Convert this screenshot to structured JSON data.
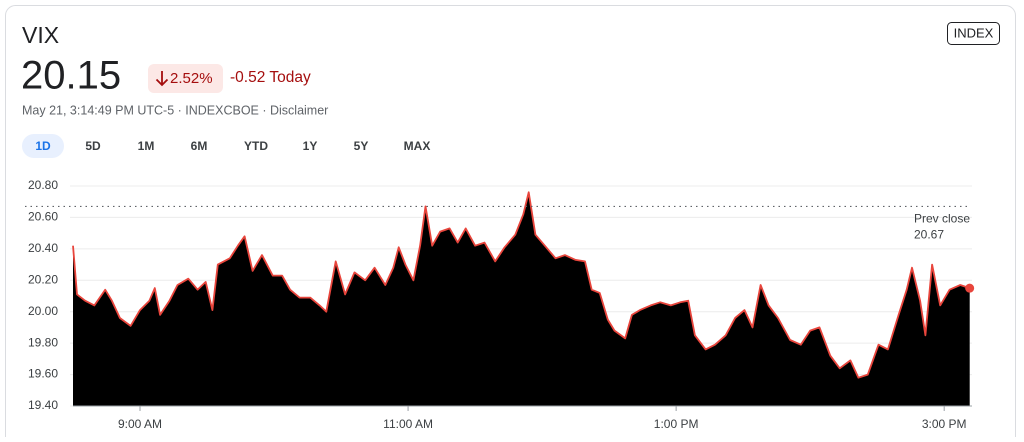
{
  "header": {
    "name": "VIX",
    "price": "20.15",
    "change_pct": "2.52%",
    "change": "-0.52 Today",
    "meta": "May 21, 3:14:49 PM UTC-5 · INDEXCBOE · Disclaimer",
    "badge": "INDEX",
    "ranges": [
      "1D",
      "5D",
      "1M",
      "6M",
      "YTD",
      "1Y",
      "5Y",
      "MAX"
    ],
    "active_range": 0
  },
  "chart_data": {
    "type": "area",
    "x": [
      8.5,
      8.53,
      8.59,
      8.66,
      8.74,
      8.79,
      8.85,
      8.93,
      9.0,
      9.07,
      9.11,
      9.15,
      9.22,
      9.28,
      9.36,
      9.43,
      9.49,
      9.54,
      9.58,
      9.67,
      9.73,
      9.78,
      9.84,
      9.91,
      9.99,
      10.06,
      10.12,
      10.19,
      10.27,
      10.34,
      10.39,
      10.46,
      10.53,
      10.6,
      10.68,
      10.75,
      10.83,
      10.89,
      10.93,
      10.98,
      11.04,
      11.09,
      11.13,
      11.18,
      11.24,
      11.31,
      11.37,
      11.43,
      11.5,
      11.57,
      11.65,
      11.72,
      11.8,
      11.86,
      11.9,
      11.95,
      12.02,
      12.1,
      12.17,
      12.25,
      12.32,
      12.37,
      12.43,
      12.49,
      12.54,
      12.62,
      12.67,
      12.73,
      12.81,
      12.88,
      12.96,
      13.03,
      13.09,
      13.14,
      13.22,
      13.29,
      13.37,
      13.44,
      13.51,
      13.57,
      13.63,
      13.69,
      13.76,
      13.85,
      13.93,
      14.0,
      14.07,
      14.15,
      14.22,
      14.3,
      14.36,
      14.43,
      14.51,
      14.58,
      14.66,
      14.72,
      14.76,
      14.82,
      14.86,
      14.91,
      14.97,
      15.04,
      15.12,
      15.19
    ],
    "values": [
      20.42,
      20.11,
      20.07,
      20.04,
      20.14,
      20.07,
      19.96,
      19.91,
      20.01,
      20.07,
      20.15,
      19.98,
      20.07,
      20.17,
      20.21,
      20.14,
      20.19,
      20.01,
      20.3,
      20.34,
      20.42,
      20.48,
      20.26,
      20.36,
      20.23,
      20.23,
      20.14,
      20.09,
      20.09,
      20.04,
      20.0,
      20.32,
      20.11,
      20.25,
      20.2,
      20.28,
      20.17,
      20.28,
      20.41,
      20.3,
      20.2,
      20.42,
      20.67,
      20.42,
      20.51,
      20.53,
      20.44,
      20.53,
      20.42,
      20.44,
      20.32,
      20.41,
      20.49,
      20.62,
      20.76,
      20.49,
      20.42,
      20.34,
      20.36,
      20.33,
      20.32,
      20.14,
      20.12,
      19.95,
      19.88,
      19.83,
      19.98,
      20.01,
      20.04,
      20.06,
      20.04,
      20.06,
      20.07,
      19.85,
      19.76,
      19.79,
      19.85,
      19.96,
      20.01,
      19.9,
      20.17,
      20.04,
      19.96,
      19.82,
      19.79,
      19.88,
      19.9,
      19.72,
      19.64,
      19.69,
      19.58,
      19.6,
      19.79,
      19.76,
      19.98,
      20.14,
      20.28,
      20.07,
      19.85,
      20.3,
      20.04,
      20.14,
      20.17,
      20.15
    ],
    "color": "#e8453c",
    "fill_color": "#000000",
    "xlim": [
      8.5,
      15.2
    ],
    "xticks": [
      {
        "value": 9,
        "label": "9:00 AM"
      },
      {
        "value": 11,
        "label": "11:00 AM"
      },
      {
        "value": 13,
        "label": "1:00 PM"
      },
      {
        "value": 15,
        "label": "3:00 PM"
      }
    ],
    "ylim": [
      19.4,
      20.8
    ],
    "yticks": [
      {
        "value": 19.4,
        "label": "19.40"
      },
      {
        "value": 19.6,
        "label": "19.60"
      },
      {
        "value": 19.8,
        "label": "19.80"
      },
      {
        "value": 20.0,
        "label": "20.00"
      },
      {
        "value": 20.2,
        "label": "20.20"
      },
      {
        "value": 20.4,
        "label": "20.40"
      },
      {
        "value": 20.6,
        "label": "20.60"
      },
      {
        "value": 20.8,
        "label": "20.80"
      }
    ],
    "grid": true,
    "prev_close_label": "Prev close",
    "prev_close": 20.67
  }
}
